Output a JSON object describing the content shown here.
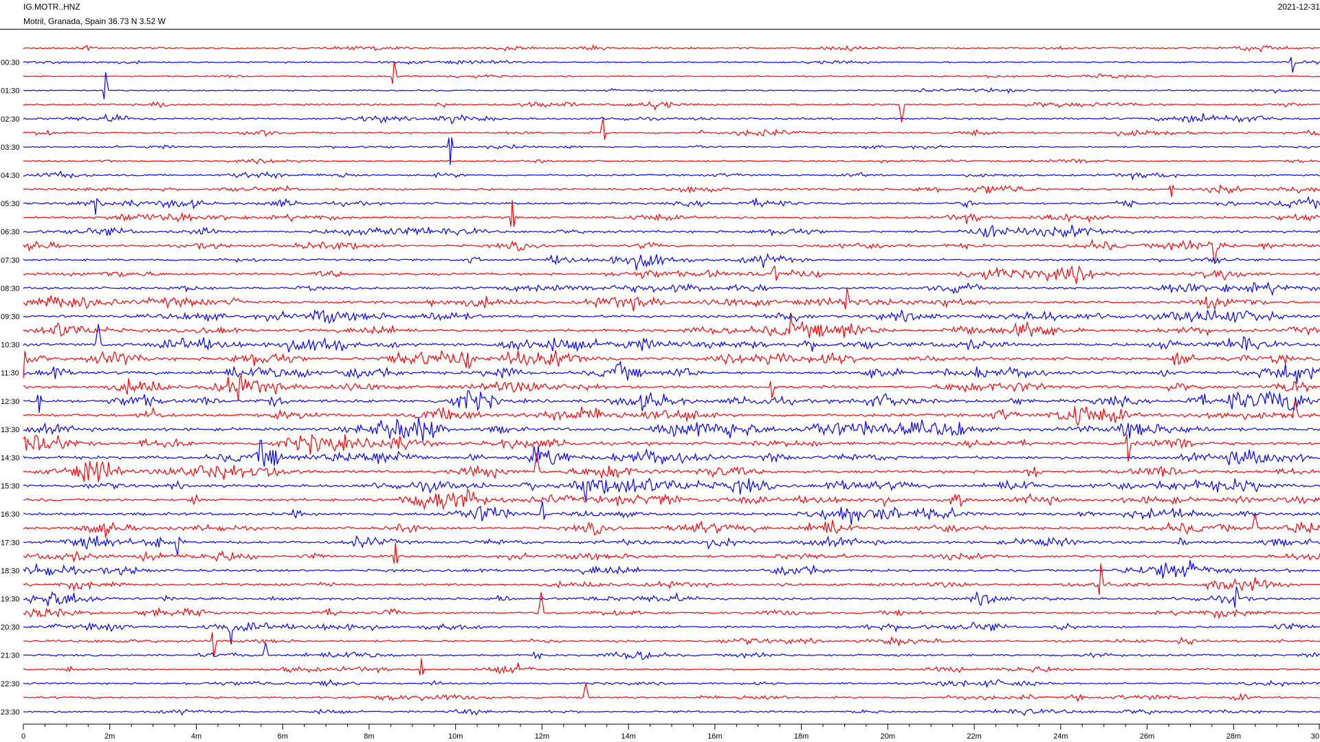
{
  "header": {
    "station_code": "IG.MOTR..HNZ",
    "location": "Motril, Granada, Spain  36.73 N 3.52 W",
    "date": "2021-12-31"
  },
  "colors": {
    "trace_a": "#ff0000",
    "trace_b": "#0000ff",
    "text": "#000000",
    "background": "#ffffff"
  },
  "chart_data": {
    "type": "line",
    "description_kind": "helicorder",
    "rows": 48,
    "minutes_per_row": 30,
    "row_colors_cycle": [
      "#ff0000",
      "#0000ff"
    ],
    "y_tick_labels": [
      "00:30",
      "01:30",
      "02:30",
      "03:30",
      "04:30",
      "05:30",
      "06:30",
      "07:30",
      "08:30",
      "09:30",
      "10:30",
      "11:30",
      "12:30",
      "13:30",
      "14:30",
      "15:30",
      "16:30",
      "17:30",
      "18:30",
      "19:30",
      "20:30",
      "21:30",
      "22:30",
      "23:30"
    ],
    "x_tick_labels": [
      "0",
      "2m",
      "4m",
      "6m",
      "8m",
      "10m",
      "12m",
      "14m",
      "16m",
      "18m",
      "20m",
      "22m",
      "24m",
      "26m",
      "28m",
      "30"
    ],
    "xlim": [
      0,
      30
    ],
    "xlabel": "",
    "ylabel": "",
    "grid": false,
    "row_activity": [
      0.8,
      0.6,
      0.5,
      0.6,
      0.9,
      1.2,
      1.0,
      0.6,
      0.7,
      1.0,
      1.3,
      1.4,
      1.3,
      1.4,
      1.4,
      1.3,
      1.6,
      1.5,
      1.8,
      1.9,
      2.0,
      2.2,
      2.2,
      2.1,
      2.0,
      2.3,
      2.1,
      2.3,
      2.1,
      2.2,
      2.0,
      2.1,
      1.9,
      1.9,
      1.8,
      1.7,
      1.6,
      1.6,
      1.5,
      1.5,
      1.3,
      1.3,
      1.1,
      1.1,
      1.0,
      0.9,
      1.1,
      1.0
    ]
  }
}
